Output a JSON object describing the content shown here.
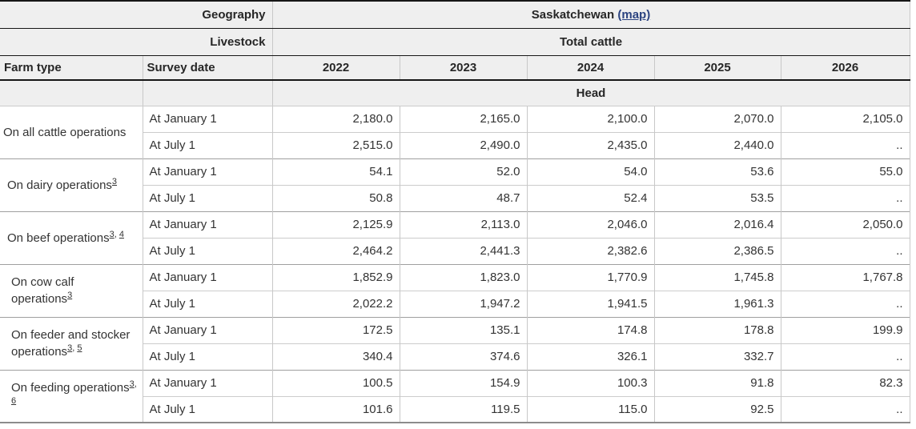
{
  "table": {
    "header": {
      "geography_label": "Geography",
      "geography_value": "Saskatchewan",
      "map_link": "(map)",
      "livestock_label": "Livestock",
      "livestock_value": "Total cattle",
      "farm_type_label": "Farm type",
      "survey_date_label": "Survey date",
      "years": [
        "2022",
        "2023",
        "2024",
        "2025",
        "2026"
      ],
      "unit_label": "Head"
    },
    "not_available_symbol": "..",
    "groups": [
      {
        "farm_type": "On all cattle operations",
        "footnotes": [],
        "indent": 0,
        "rows": [
          {
            "survey_date": "At January 1",
            "values": [
              "2,180.0",
              "2,165.0",
              "2,100.0",
              "2,070.0",
              "2,105.0"
            ]
          },
          {
            "survey_date": "At July 1",
            "values": [
              "2,515.0",
              "2,490.0",
              "2,435.0",
              "2,440.0",
              ".."
            ]
          }
        ]
      },
      {
        "farm_type": "On dairy operations",
        "footnotes": [
          "3"
        ],
        "indent": 1,
        "rows": [
          {
            "survey_date": "At January 1",
            "values": [
              "54.1",
              "52.0",
              "54.0",
              "53.6",
              "55.0"
            ]
          },
          {
            "survey_date": "At July 1",
            "values": [
              "50.8",
              "48.7",
              "52.4",
              "53.5",
              ".."
            ]
          }
        ]
      },
      {
        "farm_type": "On beef operations",
        "footnotes": [
          "3",
          "4"
        ],
        "indent": 1,
        "rows": [
          {
            "survey_date": "At January 1",
            "values": [
              "2,125.9",
              "2,113.0",
              "2,046.0",
              "2,016.4",
              "2,050.0"
            ]
          },
          {
            "survey_date": "At July 1",
            "values": [
              "2,464.2",
              "2,441.3",
              "2,382.6",
              "2,386.5",
              ".."
            ]
          }
        ]
      },
      {
        "farm_type": "On cow calf operations",
        "footnotes": [
          "3"
        ],
        "indent": 2,
        "rows": [
          {
            "survey_date": "At January 1",
            "values": [
              "1,852.9",
              "1,823.0",
              "1,770.9",
              "1,745.8",
              "1,767.8"
            ]
          },
          {
            "survey_date": "At July 1",
            "values": [
              "2,022.2",
              "1,947.2",
              "1,941.5",
              "1,961.3",
              ".."
            ]
          }
        ]
      },
      {
        "farm_type": "On feeder and stocker operations",
        "footnotes": [
          "3",
          "5"
        ],
        "indent": 2,
        "rows": [
          {
            "survey_date": "At January 1",
            "values": [
              "172.5",
              "135.1",
              "174.8",
              "178.8",
              "199.9"
            ]
          },
          {
            "survey_date": "At July 1",
            "values": [
              "340.4",
              "374.6",
              "326.1",
              "332.7",
              ".."
            ]
          }
        ]
      },
      {
        "farm_type": "On feeding operations",
        "footnotes": [
          "3",
          "6"
        ],
        "indent": 2,
        "rows": [
          {
            "survey_date": "At January 1",
            "values": [
              "100.5",
              "154.9",
              "100.3",
              "91.8",
              "82.3"
            ]
          },
          {
            "survey_date": "At July 1",
            "values": [
              "101.6",
              "119.5",
              "115.0",
              "92.5",
              ".."
            ]
          }
        ]
      }
    ]
  },
  "colors": {
    "header_background": "#efefef",
    "link_blue": "#2b4380",
    "text": "#333333",
    "strong_border": "#161616",
    "light_border": "#cccccc",
    "group_border": "#9f9f9f"
  }
}
